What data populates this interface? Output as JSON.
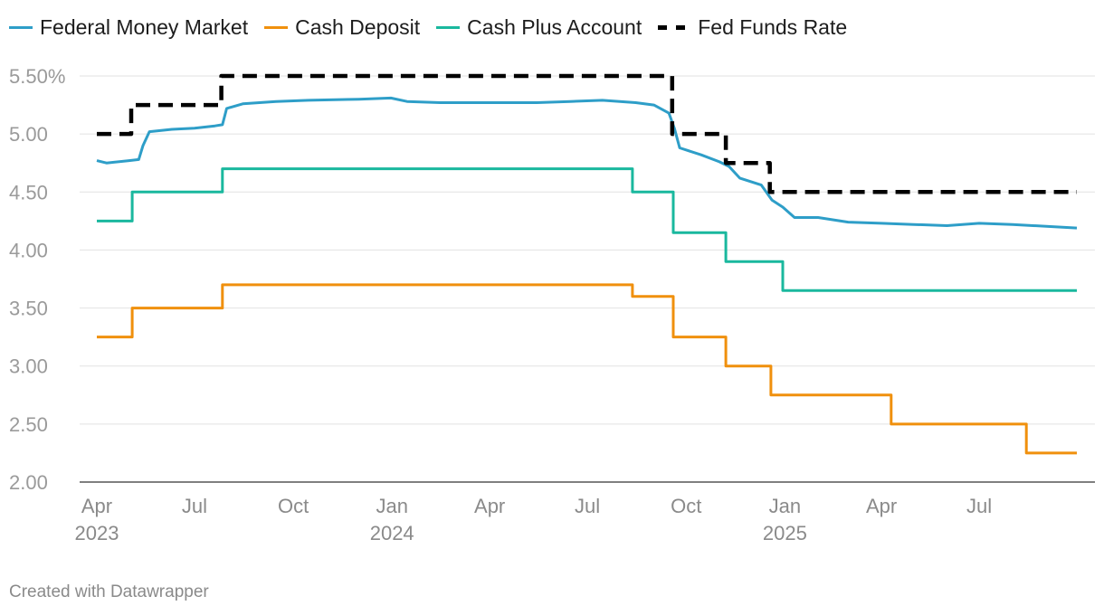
{
  "chart_data": {
    "type": "line",
    "title": "",
    "xlabel": "",
    "ylabel": "",
    "ylim": [
      2.0,
      5.5
    ],
    "yticks": [
      2.0,
      2.5,
      3.0,
      3.5,
      4.0,
      4.5,
      5.0,
      5.5
    ],
    "ytick_labels": [
      "2.00",
      "2.50",
      "3.00",
      "3.50",
      "4.00",
      "4.50",
      "5.00",
      "5.50%"
    ],
    "xlim": [
      "2023-04-01",
      "2025-09-30"
    ],
    "xticks": [
      {
        "date": "2023-04-01",
        "label": "Apr",
        "year": "2023"
      },
      {
        "date": "2023-07-01",
        "label": "Jul",
        "year": ""
      },
      {
        "date": "2023-10-01",
        "label": "Oct",
        "year": ""
      },
      {
        "date": "2024-01-01",
        "label": "Jan",
        "year": "2024"
      },
      {
        "date": "2024-04-01",
        "label": "Apr",
        "year": ""
      },
      {
        "date": "2024-07-01",
        "label": "Jul",
        "year": ""
      },
      {
        "date": "2024-10-01",
        "label": "Oct",
        "year": ""
      },
      {
        "date": "2025-01-01",
        "label": "Jan",
        "year": "2025"
      },
      {
        "date": "2025-04-01",
        "label": "Apr",
        "year": ""
      },
      {
        "date": "2025-07-01",
        "label": "Jul",
        "year": ""
      }
    ],
    "grid": true,
    "legend_position": "top-left",
    "series": [
      {
        "name": "Federal Money Market",
        "color": "#2e9ec8",
        "dash": false,
        "points": [
          [
            "2023-04-01",
            4.77
          ],
          [
            "2023-04-10",
            4.75
          ],
          [
            "2023-05-01",
            4.77
          ],
          [
            "2023-05-10",
            4.78
          ],
          [
            "2023-05-14",
            4.9
          ],
          [
            "2023-05-20",
            5.02
          ],
          [
            "2023-06-10",
            5.04
          ],
          [
            "2023-07-01",
            5.05
          ],
          [
            "2023-07-20",
            5.07
          ],
          [
            "2023-07-27",
            5.08
          ],
          [
            "2023-07-31",
            5.22
          ],
          [
            "2023-08-15",
            5.26
          ],
          [
            "2023-09-15",
            5.28
          ],
          [
            "2023-10-15",
            5.29
          ],
          [
            "2023-12-01",
            5.3
          ],
          [
            "2023-12-31",
            5.31
          ],
          [
            "2024-01-15",
            5.28
          ],
          [
            "2024-02-15",
            5.27
          ],
          [
            "2024-03-15",
            5.27
          ],
          [
            "2024-04-15",
            5.27
          ],
          [
            "2024-05-15",
            5.27
          ],
          [
            "2024-06-15",
            5.28
          ],
          [
            "2024-07-15",
            5.29
          ],
          [
            "2024-08-15",
            5.27
          ],
          [
            "2024-09-01",
            5.25
          ],
          [
            "2024-09-15",
            5.18
          ],
          [
            "2024-09-20",
            5.05
          ],
          [
            "2024-09-25",
            4.88
          ],
          [
            "2024-10-15",
            4.82
          ],
          [
            "2024-11-01",
            4.76
          ],
          [
            "2024-11-10",
            4.72
          ],
          [
            "2024-11-20",
            4.62
          ],
          [
            "2024-12-10",
            4.56
          ],
          [
            "2024-12-20",
            4.43
          ],
          [
            "2024-12-30",
            4.37
          ],
          [
            "2025-01-10",
            4.28
          ],
          [
            "2025-02-01",
            4.28
          ],
          [
            "2025-03-01",
            4.24
          ],
          [
            "2025-04-01",
            4.23
          ],
          [
            "2025-05-01",
            4.22
          ],
          [
            "2025-06-01",
            4.21
          ],
          [
            "2025-07-01",
            4.23
          ],
          [
            "2025-08-01",
            4.22
          ],
          [
            "2025-09-30",
            4.19
          ]
        ]
      },
      {
        "name": "Cash Deposit",
        "color": "#f0900d",
        "dash": false,
        "points": [
          [
            "2023-04-01",
            3.25
          ],
          [
            "2023-05-04",
            3.25
          ],
          [
            "2023-05-04",
            3.5
          ],
          [
            "2023-07-27",
            3.5
          ],
          [
            "2023-07-27",
            3.7
          ],
          [
            "2024-08-12",
            3.7
          ],
          [
            "2024-08-12",
            3.6
          ],
          [
            "2024-09-19",
            3.6
          ],
          [
            "2024-09-19",
            3.25
          ],
          [
            "2024-11-07",
            3.25
          ],
          [
            "2024-11-07",
            3.0
          ],
          [
            "2024-12-19",
            3.0
          ],
          [
            "2024-12-19",
            2.75
          ],
          [
            "2025-04-10",
            2.75
          ],
          [
            "2025-04-10",
            2.5
          ],
          [
            "2025-08-14",
            2.5
          ],
          [
            "2025-08-14",
            2.25
          ],
          [
            "2025-09-30",
            2.25
          ]
        ]
      },
      {
        "name": "Cash Plus Account",
        "color": "#1ab89e",
        "dash": false,
        "points": [
          [
            "2023-04-01",
            4.25
          ],
          [
            "2023-05-04",
            4.25
          ],
          [
            "2023-05-04",
            4.5
          ],
          [
            "2023-07-27",
            4.5
          ],
          [
            "2023-07-27",
            4.7
          ],
          [
            "2024-08-12",
            4.7
          ],
          [
            "2024-08-12",
            4.5
          ],
          [
            "2024-09-19",
            4.5
          ],
          [
            "2024-09-19",
            4.15
          ],
          [
            "2024-11-07",
            4.15
          ],
          [
            "2024-11-07",
            3.9
          ],
          [
            "2024-12-30",
            3.9
          ],
          [
            "2024-12-30",
            3.65
          ],
          [
            "2025-09-30",
            3.65
          ]
        ]
      },
      {
        "name": "Fed Funds Rate",
        "color": "#000000",
        "dash": true,
        "points": [
          [
            "2023-04-01",
            5.0
          ],
          [
            "2023-05-03",
            5.0
          ],
          [
            "2023-05-03",
            5.25
          ],
          [
            "2023-07-26",
            5.25
          ],
          [
            "2023-07-26",
            5.5
          ],
          [
            "2024-09-18",
            5.5
          ],
          [
            "2024-09-18",
            5.0
          ],
          [
            "2024-11-07",
            5.0
          ],
          [
            "2024-11-07",
            4.75
          ],
          [
            "2024-12-18",
            4.75
          ],
          [
            "2024-12-18",
            4.5
          ],
          [
            "2025-09-30",
            4.5
          ]
        ]
      }
    ]
  },
  "footer": {
    "credit": "Created with Datawrapper"
  }
}
